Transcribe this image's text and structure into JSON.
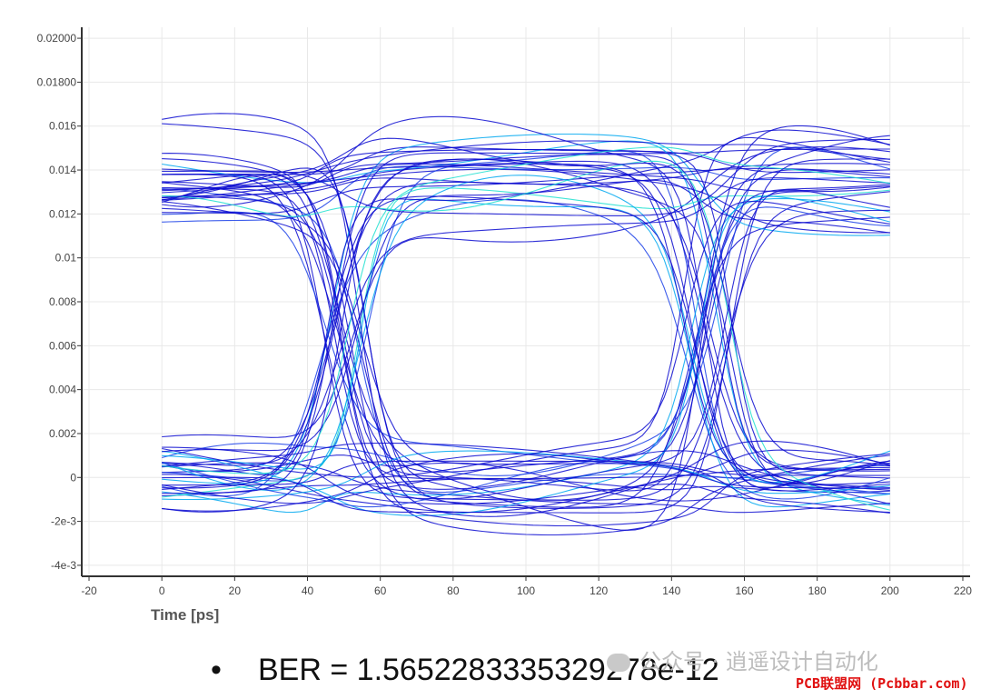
{
  "chart_data": {
    "type": "line",
    "title": "",
    "xlabel": "Time [ps]",
    "ylabel": "",
    "xlim": [
      -22,
      222
    ],
    "ylim": [
      -0.0045,
      0.0205
    ],
    "xticks": [
      -20,
      0,
      20,
      40,
      60,
      80,
      100,
      120,
      140,
      160,
      180,
      200,
      220
    ],
    "xtick_labels": [
      "-20",
      "0",
      "20",
      "40",
      "60",
      "80",
      "100",
      "120",
      "140",
      "160",
      "180",
      "200",
      "220"
    ],
    "yticks": [
      0.02,
      0.018,
      0.016,
      0.014,
      0.012,
      0.01,
      0.008,
      0.006,
      0.004,
      0.002,
      0,
      -0.002,
      -0.004
    ],
    "ytick_labels": [
      "0.02000",
      "0.01800",
      "0.016",
      "0.014",
      "0.012",
      "0.01",
      "0.008",
      "0.006",
      "0.004",
      "0.002",
      "0",
      "-2e-3",
      "-4e-3"
    ],
    "grid": true,
    "eye_diagram": {
      "unit_interval_ps": 100,
      "time_span_ps": [
        0,
        200
      ],
      "crossing_times_ps": [
        50,
        150
      ],
      "crossing_level": 0.0068,
      "high_level_range": [
        0.0112,
        0.0176
      ],
      "low_level_range": [
        -0.0029,
        0.002
      ],
      "trace_colors": [
        "#0a0ad0",
        "#1a40e8",
        "#00a8f0",
        "#20e0d0",
        "#c8e830"
      ]
    }
  },
  "annotation": {
    "bullet": "•",
    "ber_text": "BER = 1.5652283335329278e-12"
  },
  "watermark": {
    "text": "公众号 · 逍遥设计自动化",
    "icon": "wechat-icon",
    "site": "PCB联盟网 (Pcbbar.com)"
  }
}
